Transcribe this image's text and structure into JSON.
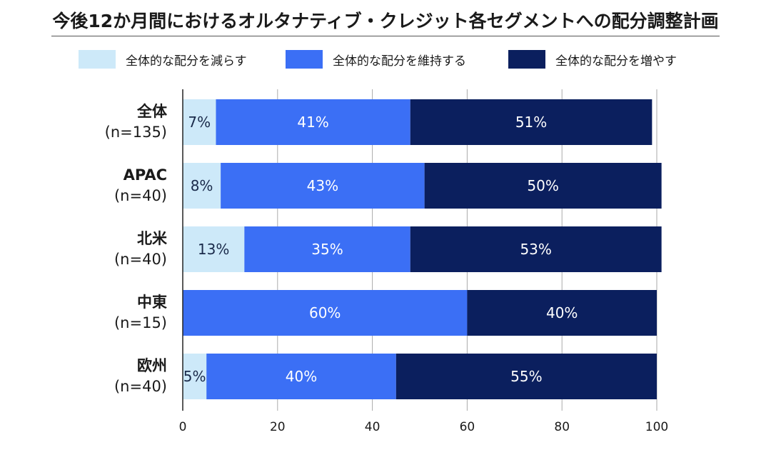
{
  "chart_data": {
    "type": "bar",
    "orientation": "horizontal",
    "stacked": true,
    "title": "今後12か月間におけるオルタナティブ・クレジット各セグメントへの配分調整計画",
    "categories": [
      {
        "name": "全体",
        "n": "(n=135)"
      },
      {
        "name": "APAC",
        "n": "(n=40)"
      },
      {
        "name": "北米",
        "n": "(n=40)"
      },
      {
        "name": "中東",
        "n": "(n=15)"
      },
      {
        "name": "欧州",
        "n": "(n=40)"
      }
    ],
    "series": [
      {
        "name": "全体的な配分を減らす",
        "color": "#cde9f9",
        "label_color": "#1a2a4a",
        "values": [
          7,
          8,
          13,
          0,
          5
        ]
      },
      {
        "name": "全体的な配分を維持する",
        "color": "#3b6ff5",
        "label_color": "#ffffff",
        "values": [
          41,
          43,
          35,
          60,
          40
        ]
      },
      {
        "name": "全体的な配分を増やす",
        "color": "#0b1f5e",
        "label_color": "#ffffff",
        "values": [
          51,
          50,
          53,
          40,
          55
        ]
      }
    ],
    "xlim": [
      0,
      100
    ],
    "xticks": [
      0,
      20,
      40,
      60,
      80,
      100
    ],
    "grid": true,
    "legend": "top"
  }
}
